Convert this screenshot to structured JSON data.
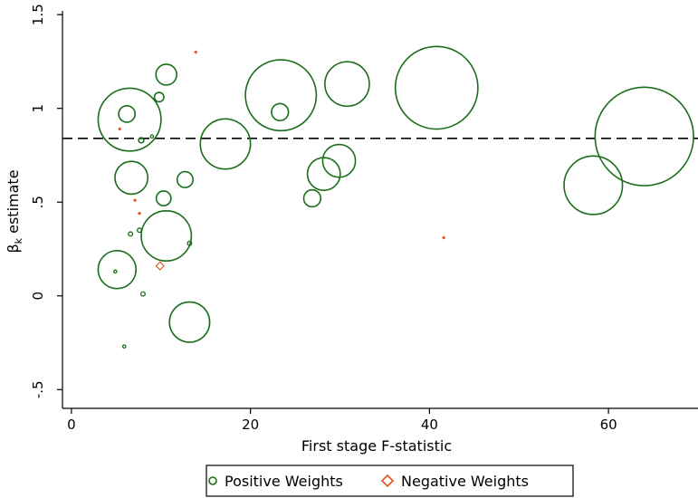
{
  "chart_data": {
    "type": "scatter",
    "title": "",
    "xlabel": "First stage F-statistic",
    "ylabel_main": "β",
    "ylabel_sub": "k",
    "ylabel_rest": " estimate",
    "xlim": [
      -1,
      70
    ],
    "ylim": [
      -0.6,
      1.52
    ],
    "xticks": [
      0,
      20,
      40,
      60
    ],
    "xtick_labels": [
      "0",
      "20",
      "40",
      "60"
    ],
    "yticks": [
      -0.5,
      0,
      0.5,
      1,
      1.5
    ],
    "ytick_labels": [
      "-.5",
      "0",
      ".5",
      "1",
      "1.5"
    ],
    "reference_line": {
      "y": 0.84,
      "style": "dashed"
    },
    "grid": false,
    "legend_position": "bottom",
    "series": [
      {
        "name": "Positive Weights",
        "marker": "circle",
        "color": "#1a6e1a",
        "points": [
          {
            "x": 6.5,
            "y": 0.94,
            "w": 22
          },
          {
            "x": 6.2,
            "y": 0.97,
            "w": 1.5
          },
          {
            "x": 10.6,
            "y": 1.18,
            "w": 2.4
          },
          {
            "x": 9.8,
            "y": 1.06,
            "w": 0.5
          },
          {
            "x": 7.8,
            "y": 0.83,
            "w": 0.15
          },
          {
            "x": 9.0,
            "y": 0.85,
            "w": 0.05
          },
          {
            "x": 6.7,
            "y": 0.63,
            "w": 6
          },
          {
            "x": 10.3,
            "y": 0.52,
            "w": 1.2
          },
          {
            "x": 12.7,
            "y": 0.62,
            "w": 1.4
          },
          {
            "x": 10.6,
            "y": 0.32,
            "w": 14
          },
          {
            "x": 7.6,
            "y": 0.35,
            "w": 0.1
          },
          {
            "x": 6.6,
            "y": 0.33,
            "w": 0.1
          },
          {
            "x": 13.2,
            "y": 0.28,
            "w": 0.1
          },
          {
            "x": 5.1,
            "y": 0.14,
            "w": 8
          },
          {
            "x": 4.9,
            "y": 0.13,
            "w": 0.05
          },
          {
            "x": 8.0,
            "y": 0.01,
            "w": 0.1
          },
          {
            "x": 13.2,
            "y": -0.14,
            "w": 9
          },
          {
            "x": 5.9,
            "y": -0.27,
            "w": 0.05
          },
          {
            "x": 17.2,
            "y": 0.81,
            "w": 14
          },
          {
            "x": 23.4,
            "y": 1.07,
            "w": 28
          },
          {
            "x": 23.3,
            "y": 0.98,
            "w": 1.6
          },
          {
            "x": 30.8,
            "y": 1.13,
            "w": 11
          },
          {
            "x": 28.2,
            "y": 0.65,
            "w": 6
          },
          {
            "x": 29.9,
            "y": 0.72,
            "w": 6
          },
          {
            "x": 26.9,
            "y": 0.52,
            "w": 1.6
          },
          {
            "x": 40.8,
            "y": 1.11,
            "w": 38
          },
          {
            "x": 58.3,
            "y": 0.59,
            "w": 19
          },
          {
            "x": 64.0,
            "y": 0.85,
            "w": 54
          }
        ]
      },
      {
        "name": "Negative Weights",
        "marker": "diamond",
        "color": "#e8501e",
        "points": [
          {
            "x": 13.9,
            "y": 1.3,
            "w": 0.02
          },
          {
            "x": 5.4,
            "y": 0.89,
            "w": 0.02
          },
          {
            "x": 7.1,
            "y": 0.51,
            "w": 0.02
          },
          {
            "x": 7.6,
            "y": 0.44,
            "w": 0.02
          },
          {
            "x": 9.9,
            "y": 0.16,
            "w": 0.35
          },
          {
            "x": 41.6,
            "y": 0.31,
            "w": 0.02
          }
        ]
      }
    ]
  }
}
